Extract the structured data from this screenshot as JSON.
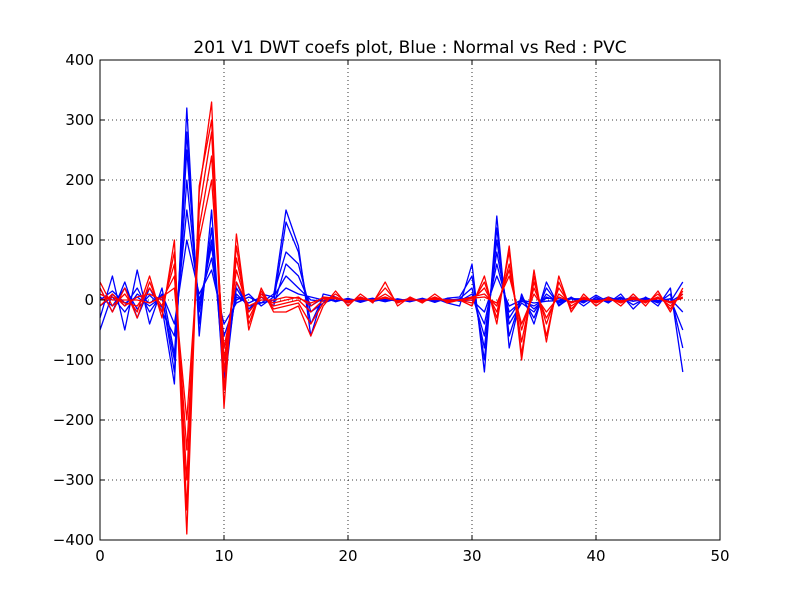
{
  "chart_data": {
    "type": "line",
    "title": "201 V1 DWT coefs plot, Blue : Normal vs Red : PVC",
    "xlabel": "",
    "ylabel": "",
    "xlim": [
      0,
      50
    ],
    "ylim": [
      -400,
      400
    ],
    "xticks": [
      "0",
      "10",
      "20",
      "30",
      "40",
      "50"
    ],
    "yticks": [
      "400",
      "300",
      "200",
      "100",
      "0",
      "−100",
      "−200",
      "−300",
      "−400"
    ],
    "grid": true,
    "legend": "none",
    "x": [
      0,
      1,
      2,
      3,
      4,
      5,
      6,
      7,
      8,
      9,
      10,
      11,
      12,
      13,
      14,
      15,
      16,
      17,
      18,
      19,
      20,
      21,
      22,
      23,
      24,
      25,
      26,
      27,
      28,
      29,
      30,
      31,
      32,
      33,
      34,
      35,
      36,
      37,
      38,
      39,
      40,
      41,
      42,
      43,
      44,
      45,
      46,
      47
    ],
    "series": [
      {
        "color": "#0000ff",
        "values": [
          5,
          -10,
          20,
          -15,
          8,
          -12,
          -140,
          320,
          -60,
          150,
          -150,
          30,
          -20,
          10,
          5,
          150,
          90,
          -60,
          10,
          5,
          -5,
          5,
          -3,
          4,
          -3,
          3,
          -2,
          3,
          -5,
          -10,
          60,
          -120,
          140,
          -80,
          10,
          -40,
          30,
          -10,
          5,
          -10,
          5,
          -5,
          10,
          -15,
          5,
          -10,
          20,
          -120
        ]
      },
      {
        "color": "#0000ff",
        "values": [
          -10,
          5,
          -20,
          10,
          -5,
          8,
          -120,
          280,
          -40,
          120,
          -130,
          20,
          -15,
          5,
          -5,
          130,
          80,
          -40,
          5,
          -3,
          3,
          -4,
          2,
          -3,
          2,
          -2,
          3,
          -4,
          3,
          5,
          40,
          -100,
          120,
          -60,
          5,
          -30,
          20,
          -8,
          3,
          -5,
          8,
          -3,
          5,
          -8,
          3,
          -5,
          10,
          -80
        ]
      },
      {
        "color": "#0000ff",
        "values": [
          0,
          15,
          -5,
          5,
          -10,
          5,
          -100,
          250,
          -20,
          100,
          -100,
          10,
          -10,
          -5,
          10,
          80,
          60,
          -20,
          -5,
          2,
          -2,
          3,
          -2,
          1,
          -1,
          1,
          -2,
          2,
          -1,
          2,
          20,
          -80,
          100,
          -40,
          -5,
          -20,
          10,
          -5,
          2,
          2,
          -3,
          5,
          -2,
          3,
          -2,
          4,
          -3,
          10
        ]
      },
      {
        "color": "#0000ff",
        "values": [
          -30,
          40,
          -50,
          50,
          -40,
          20,
          -90,
          200,
          -10,
          90,
          -80,
          5,
          -5,
          5,
          -10,
          60,
          40,
          -10,
          3,
          -2,
          2,
          -1,
          3,
          -2,
          1,
          -3,
          2,
          -1,
          2,
          -2,
          10,
          -60,
          80,
          -30,
          3,
          -15,
          5,
          -3,
          4,
          -3,
          2,
          -2,
          3,
          -2,
          4,
          -3,
          2,
          -20
        ]
      },
      {
        "color": "#0000ff",
        "values": [
          20,
          -20,
          30,
          -30,
          20,
          -20,
          -60,
          150,
          0,
          70,
          -60,
          0,
          10,
          -10,
          5,
          40,
          20,
          0,
          -2,
          3,
          -3,
          2,
          -1,
          2,
          -2,
          2,
          -1,
          3,
          -2,
          1,
          5,
          -40,
          60,
          -20,
          -2,
          -10,
          3,
          2,
          -3,
          3,
          -3,
          3,
          -1,
          5,
          -3,
          2,
          -3,
          30
        ]
      },
      {
        "color": "#0000ff",
        "values": [
          -50,
          10,
          -10,
          20,
          -20,
          10,
          -40,
          100,
          10,
          50,
          -40,
          -5,
          5,
          -5,
          0,
          20,
          10,
          5,
          0,
          -1,
          1,
          -2,
          2,
          -1,
          1,
          -1,
          1,
          -2,
          1,
          -1,
          0,
          -20,
          40,
          -10,
          0,
          -5,
          -2,
          -1,
          2,
          -1,
          1,
          -1,
          2,
          -2,
          1,
          -1,
          2,
          -50
        ]
      },
      {
        "color": "#ff0000",
        "values": [
          30,
          -10,
          10,
          -20,
          40,
          -30,
          100,
          -350,
          190,
          300,
          -180,
          110,
          -50,
          20,
          -20,
          -20,
          -10,
          -60,
          -10,
          15,
          -10,
          10,
          -5,
          30,
          -10,
          5,
          -5,
          10,
          -5,
          0,
          -10,
          40,
          -40,
          90,
          -100,
          50,
          -70,
          40,
          -20,
          10,
          -10,
          5,
          -10,
          10,
          -10,
          15,
          -20,
          20
        ]
      },
      {
        "color": "#ff0000",
        "values": [
          20,
          -20,
          20,
          -30,
          30,
          -20,
          80,
          -390,
          180,
          330,
          -150,
          90,
          -40,
          15,
          -15,
          -10,
          -5,
          -40,
          -5,
          10,
          -5,
          5,
          -3,
          20,
          -5,
          3,
          -3,
          5,
          -3,
          0,
          -5,
          30,
          -30,
          80,
          -90,
          40,
          -60,
          30,
          -15,
          5,
          -5,
          3,
          -5,
          5,
          -5,
          10,
          -15,
          15
        ]
      },
      {
        "color": "#ff0000",
        "values": [
          0,
          5,
          -5,
          -10,
          20,
          -10,
          60,
          -300,
          150,
          280,
          -120,
          70,
          -30,
          10,
          -10,
          -5,
          0,
          -20,
          0,
          5,
          -3,
          3,
          -2,
          10,
          -3,
          2,
          -2,
          3,
          -2,
          0,
          0,
          20,
          -20,
          60,
          -70,
          30,
          -40,
          20,
          -10,
          3,
          -3,
          2,
          -3,
          3,
          -3,
          5,
          -10,
          10
        ]
      },
      {
        "color": "#ff0000",
        "values": [
          -10,
          10,
          -10,
          5,
          10,
          0,
          40,
          -250,
          120,
          240,
          -100,
          50,
          -20,
          5,
          -5,
          0,
          5,
          -10,
          5,
          3,
          -2,
          2,
          -1,
          5,
          -2,
          1,
          -1,
          2,
          -1,
          0,
          5,
          10,
          -10,
          50,
          -50,
          20,
          -30,
          10,
          -5,
          2,
          -2,
          1,
          -2,
          2,
          -2,
          3,
          -5,
          5
        ]
      },
      {
        "color": "#ff0000",
        "values": [
          10,
          0,
          0,
          0,
          -5,
          5,
          20,
          -200,
          100,
          200,
          -80,
          30,
          -10,
          0,
          0,
          5,
          3,
          -5,
          3,
          2,
          -1,
          1,
          0,
          3,
          -1,
          0,
          0,
          1,
          0,
          0,
          3,
          5,
          -5,
          40,
          -40,
          10,
          -20,
          5,
          -3,
          1,
          -1,
          0,
          -1,
          1,
          -1,
          2,
          -3,
          3
        ]
      }
    ]
  }
}
